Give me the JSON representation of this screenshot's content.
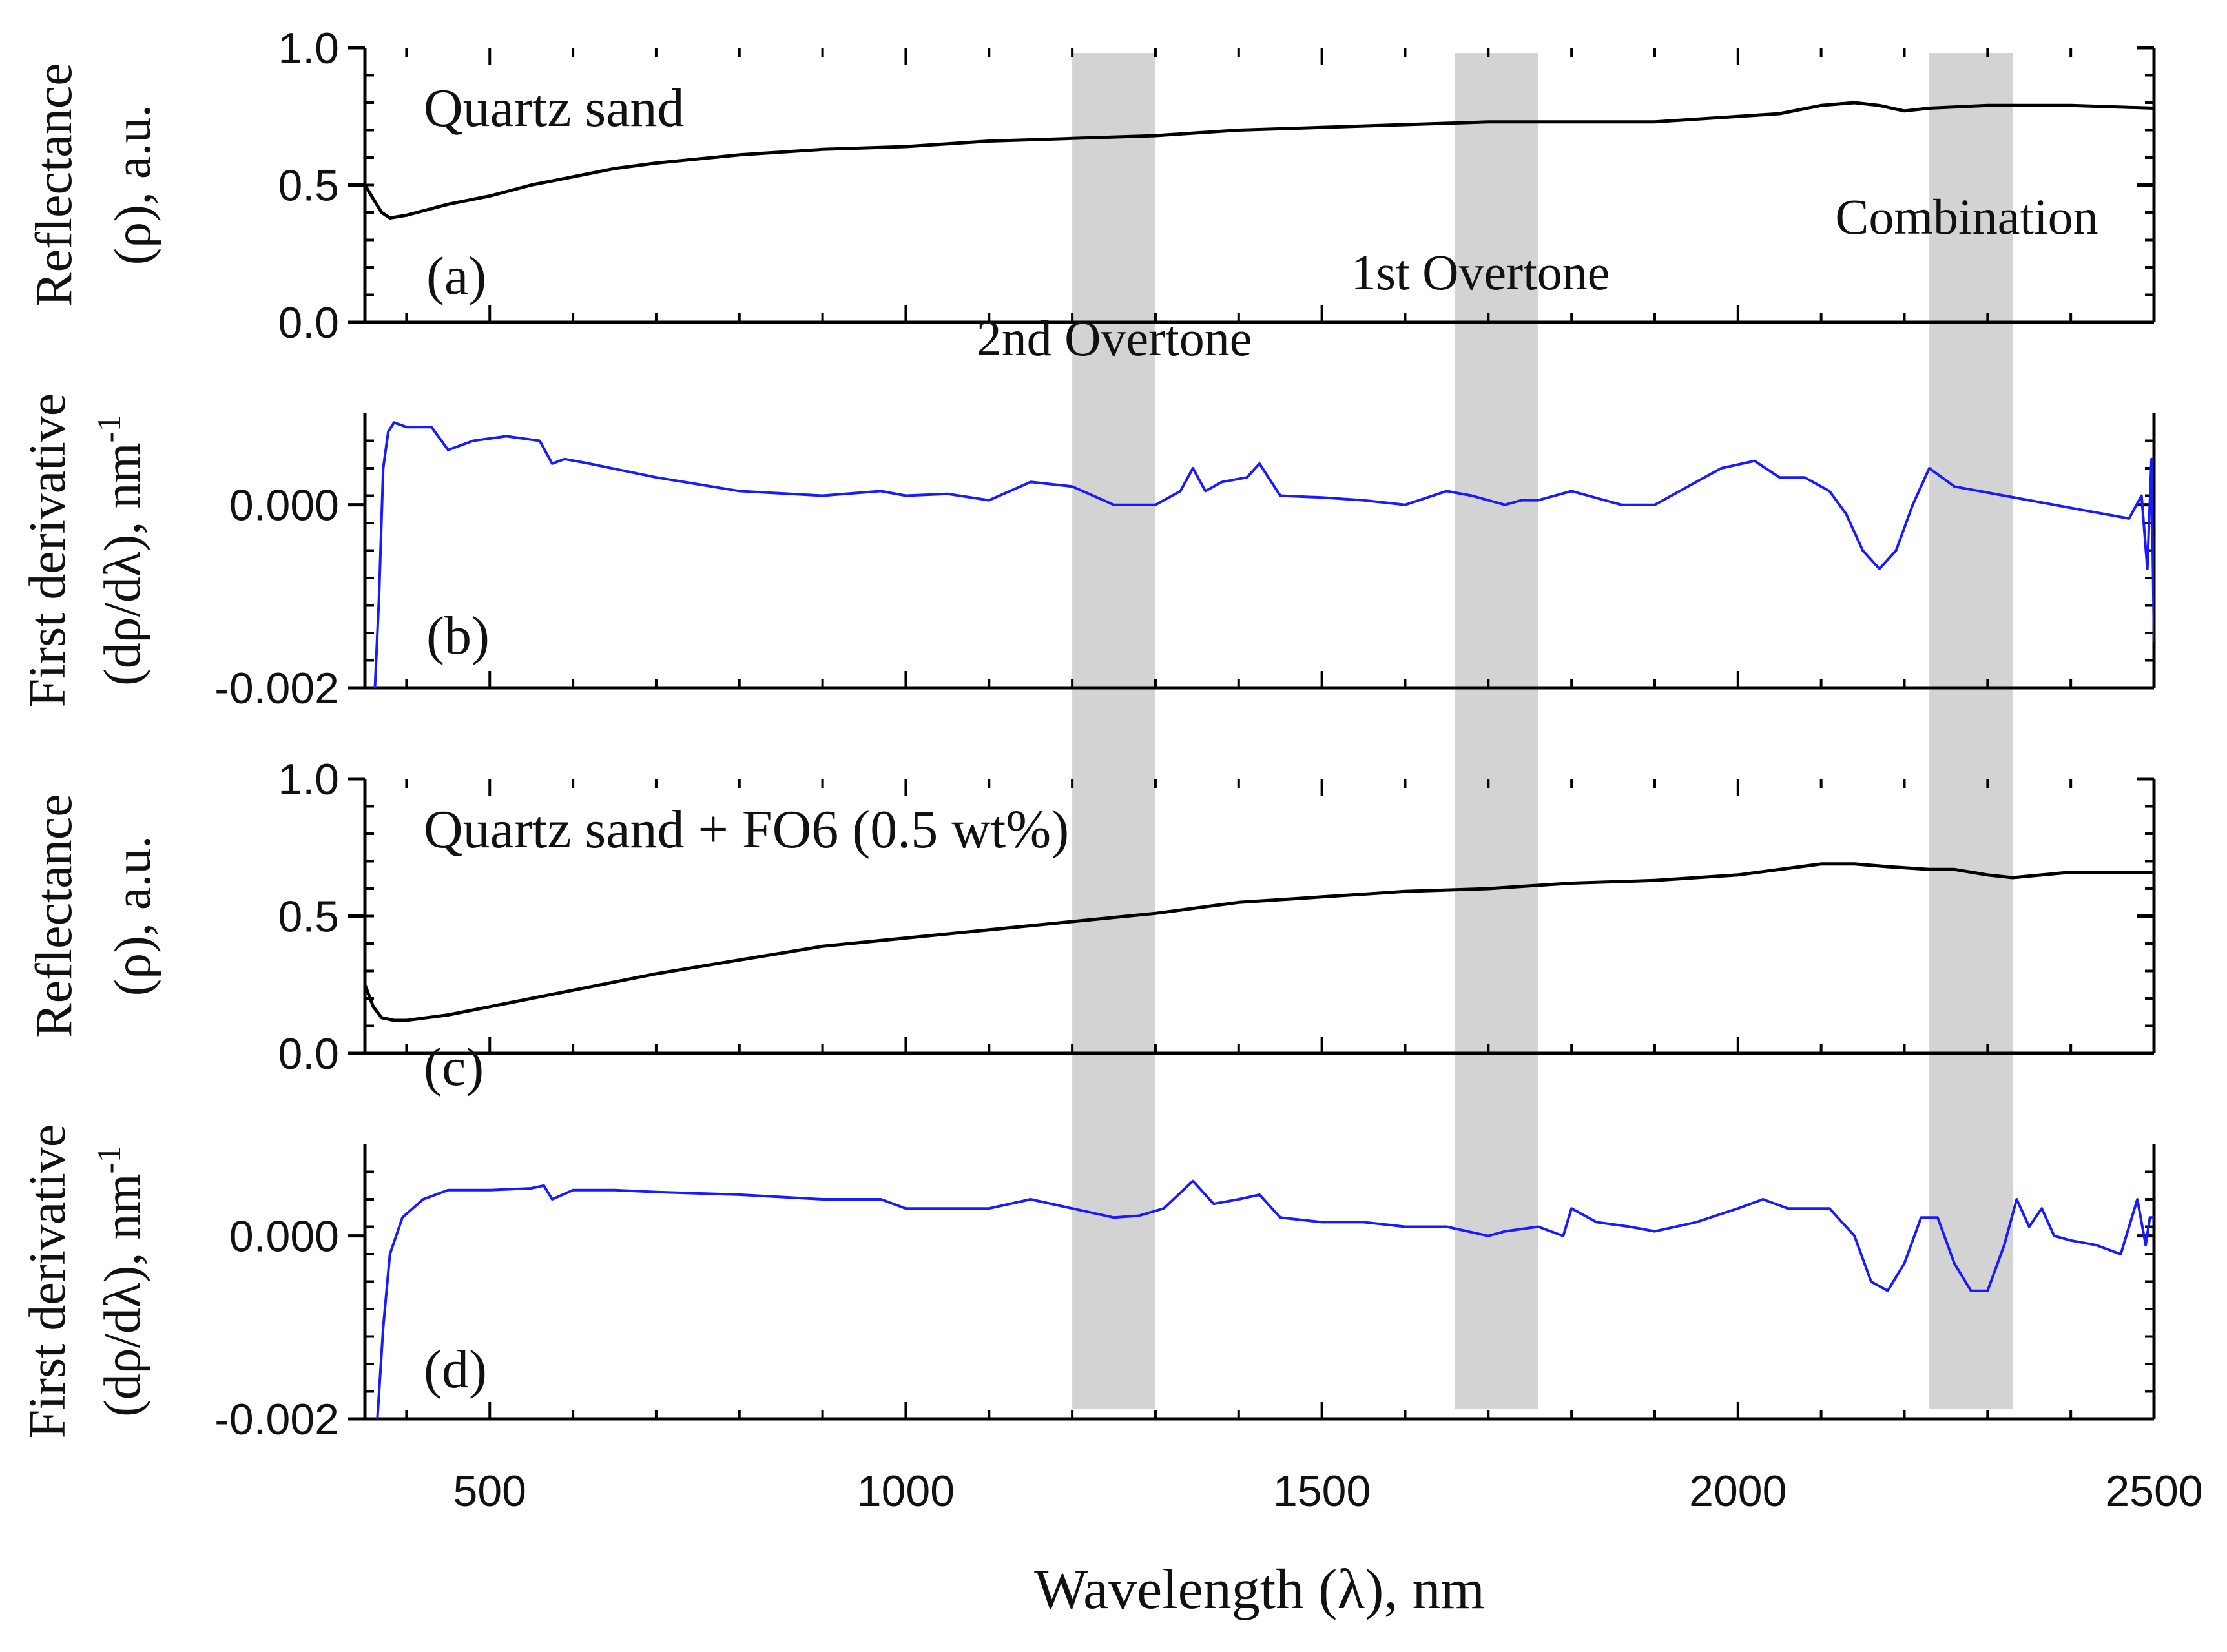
{
  "chart_data": {
    "x_axis": {
      "label": "Wavelength (λ), nm",
      "range": [
        350,
        2500
      ],
      "ticks": [
        500,
        1000,
        1500,
        2000,
        2500
      ],
      "tick_labels": [
        "500",
        "1000",
        "1500",
        "2000",
        "2500"
      ]
    },
    "bands": [
      {
        "label": "2nd Overtone",
        "x_range": [
          1200,
          1300
        ],
        "color": "#d3d3d3"
      },
      {
        "label": "1st Overtone",
        "x_range": [
          1660,
          1760
        ],
        "color": "#d3d3d3"
      },
      {
        "label": "Combination",
        "x_range": [
          2230,
          2330
        ],
        "color": "#d3d3d3"
      }
    ],
    "panels": [
      {
        "id": "a",
        "panel_label": "(a)",
        "annotation": "Quartz sand",
        "type": "line",
        "ylabel_line1": "Reflectance",
        "ylabel_line2": "(ρ), a.u.",
        "ylim": [
          0.0,
          1.0
        ],
        "yticks": [
          0.0,
          0.5,
          1.0
        ],
        "ytick_labels": [
          "0.0",
          "0.5",
          "1.0"
        ],
        "color": "#000000",
        "series": [
          {
            "x": [
              350,
              360,
              370,
              380,
              400,
              450,
              500,
              550,
              600,
              650,
              700,
              800,
              900,
              1000,
              1100,
              1200,
              1300,
              1400,
              1500,
              1600,
              1700,
              1800,
              1900,
              1950,
              2000,
              2050,
              2100,
              2140,
              2170,
              2200,
              2230,
              2300,
              2400,
              2500
            ],
            "y": [
              0.5,
              0.45,
              0.4,
              0.38,
              0.39,
              0.43,
              0.46,
              0.5,
              0.53,
              0.56,
              0.58,
              0.61,
              0.63,
              0.64,
              0.66,
              0.67,
              0.68,
              0.7,
              0.71,
              0.72,
              0.73,
              0.73,
              0.73,
              0.74,
              0.75,
              0.76,
              0.79,
              0.8,
              0.79,
              0.77,
              0.78,
              0.79,
              0.79,
              0.78
            ]
          }
        ]
      },
      {
        "id": "b",
        "panel_label": "(b)",
        "type": "line",
        "ylabel_line1": "First derivative",
        "ylabel_line2": "(dρ/dλ), nm",
        "ylabel_sup": "-1",
        "ylim": [
          -0.002,
          0.001
        ],
        "yticks": [
          -0.002,
          0.0
        ],
        "ytick_labels": [
          "-0.002",
          "0.000"
        ],
        "color": "#1a1aff",
        "series": [
          {
            "x": [
              362,
              367,
              372,
              378,
              385,
              400,
              430,
              450,
              480,
              520,
              560,
              575,
              590,
              620,
              700,
              800,
              900,
              970,
              1000,
              1050,
              1100,
              1150,
              1200,
              1250,
              1300,
              1330,
              1345,
              1360,
              1380,
              1410,
              1425,
              1450,
              1500,
              1550,
              1600,
              1650,
              1680,
              1720,
              1740,
              1760,
              1800,
              1820,
              1860,
              1900,
              1940,
              1980,
              2020,
              2050,
              2080,
              2110,
              2130,
              2150,
              2170,
              2190,
              2210,
              2230,
              2260,
              2290,
              2320,
              2350,
              2380,
              2410,
              2440,
              2470,
              2485,
              2492,
              2497,
              2500
            ],
            "y": [
              -0.002,
              -0.001,
              0.0004,
              0.0008,
              0.0009,
              0.00085,
              0.00085,
              0.0006,
              0.0007,
              0.00075,
              0.0007,
              0.00045,
              0.0005,
              0.00045,
              0.0003,
              0.00015,
              0.0001,
              0.00015,
              0.0001,
              0.00012,
              5e-05,
              0.00025,
              0.0002,
              0.0,
              0.0,
              0.00015,
              0.0004,
              0.00015,
              0.00025,
              0.0003,
              0.00045,
              0.0001,
              8e-05,
              5e-05,
              0.0,
              0.00015,
              0.0001,
              0.0,
              5e-05,
              5e-05,
              0.00015,
              0.0001,
              0.0,
              0.0,
              0.0002,
              0.0004,
              0.00048,
              0.0003,
              0.0003,
              0.00015,
              -0.0001,
              -0.0005,
              -0.0007,
              -0.0005,
              0.0,
              0.0004,
              0.0002,
              0.00015,
              0.0001,
              5e-05,
              0.0,
              -5e-05,
              -0.0001,
              -0.00015,
              0.0001,
              -0.0007,
              0.0005,
              -0.0015
            ]
          }
        ]
      },
      {
        "id": "c",
        "panel_label": "(c)",
        "annotation": "Quartz sand + FO6 (0.5 wt%)",
        "type": "line",
        "ylabel_line1": "Reflectance",
        "ylabel_line2": "(ρ), a.u.",
        "ylim": [
          0.0,
          1.0
        ],
        "yticks": [
          0.0,
          0.5,
          1.0
        ],
        "ytick_labels": [
          "0.0",
          "0.5",
          "1.0"
        ],
        "color": "#000000",
        "series": [
          {
            "x": [
              350,
              360,
              370,
              385,
              400,
              450,
              500,
              600,
              700,
              800,
              900,
              1000,
              1100,
              1200,
              1300,
              1400,
              1500,
              1600,
              1700,
              1800,
              1900,
              2000,
              2100,
              2140,
              2180,
              2230,
              2260,
              2300,
              2330,
              2400,
              2500
            ],
            "y": [
              0.25,
              0.17,
              0.13,
              0.12,
              0.12,
              0.14,
              0.17,
              0.23,
              0.29,
              0.34,
              0.39,
              0.42,
              0.45,
              0.48,
              0.51,
              0.55,
              0.57,
              0.59,
              0.6,
              0.62,
              0.63,
              0.65,
              0.69,
              0.69,
              0.68,
              0.67,
              0.67,
              0.65,
              0.64,
              0.66,
              0.66
            ]
          }
        ]
      },
      {
        "id": "d",
        "panel_label": "(d)",
        "type": "line",
        "ylabel_line1": "First derivative",
        "ylabel_line2": "(dρ/dλ), nm",
        "ylabel_sup": "-1",
        "ylim": [
          -0.002,
          0.001
        ],
        "yticks": [
          -0.002,
          0.0
        ],
        "ytick_labels": [
          "-0.002",
          "0.000"
        ],
        "color": "#1a1aff",
        "series": [
          {
            "x": [
              365,
              372,
              380,
              395,
              420,
              450,
              500,
              550,
              565,
              575,
              600,
              650,
              700,
              800,
              900,
              970,
              1000,
              1050,
              1100,
              1150,
              1200,
              1250,
              1280,
              1310,
              1345,
              1370,
              1400,
              1425,
              1450,
              1500,
              1550,
              1600,
              1650,
              1700,
              1720,
              1760,
              1790,
              1800,
              1830,
              1870,
              1900,
              1950,
              2000,
              2030,
              2060,
              2090,
              2110,
              2140,
              2160,
              2180,
              2200,
              2220,
              2240,
              2260,
              2280,
              2300,
              2320,
              2335,
              2350,
              2365,
              2380,
              2400,
              2430,
              2460,
              2480,
              2490,
              2495,
              2500
            ],
            "y": [
              -0.002,
              -0.001,
              -0.0002,
              0.0002,
              0.0004,
              0.0005,
              0.0005,
              0.00052,
              0.00055,
              0.0004,
              0.0005,
              0.0005,
              0.00048,
              0.00045,
              0.0004,
              0.0004,
              0.0003,
              0.0003,
              0.0003,
              0.0004,
              0.0003,
              0.0002,
              0.00022,
              0.0003,
              0.0006,
              0.00035,
              0.0004,
              0.00045,
              0.0002,
              0.00015,
              0.00015,
              0.0001,
              0.0001,
              0.0,
              5e-05,
              0.0001,
              0.0,
              0.0003,
              0.00015,
              0.0001,
              5e-05,
              0.00015,
              0.0003,
              0.0004,
              0.0003,
              0.0003,
              0.0003,
              0.0,
              -0.0005,
              -0.0006,
              -0.0003,
              0.0002,
              0.0002,
              -0.0003,
              -0.0006,
              -0.0006,
              -0.0001,
              0.0004,
              0.0001,
              0.0003,
              0.0,
              -5e-05,
              -0.0001,
              -0.0002,
              0.0004,
              -0.0001,
              0.0002,
              0.0002
            ]
          }
        ]
      }
    ]
  }
}
